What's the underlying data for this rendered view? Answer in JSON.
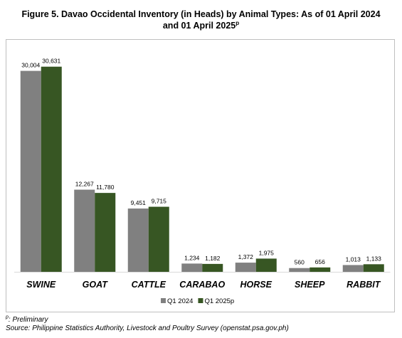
{
  "header": {
    "title_line1": "Figure 5. Davao Occidental Inventory (in Heads) by Animal Types: As of 01 April 2024",
    "title_line2": "and 01 April 2025",
    "title_sup": "p"
  },
  "footnotes": {
    "preliminary_sup": "p",
    "preliminary": ": Preliminary",
    "source": "Source: Philippine Statistics Authority, Livestock and Poultry Survey (openstat.psa.gov.ph)"
  },
  "chart_data": {
    "type": "bar",
    "title": "Figure 5. Davao Occidental Inventory (in Heads) by Animal Types: As of 01 April 2024 and 01 April 2025p",
    "categories": [
      "SWINE",
      "GOAT",
      "CATTLE",
      "CARABAO",
      "HORSE",
      "SHEEP",
      "RABBIT"
    ],
    "series": [
      {
        "name": "Q1 2024",
        "color": "#808080",
        "values": [
          30004,
          12267,
          9451,
          1234,
          1372,
          560,
          1013
        ],
        "labels": [
          "30,004",
          "12,267",
          "9,451",
          "1,234",
          "1,372",
          "560",
          "1,013"
        ]
      },
      {
        "name": "Q1 2025p",
        "color": "#375623",
        "values": [
          30631,
          11780,
          9715,
          1182,
          1975,
          656,
          1133
        ],
        "labels": [
          "30,631",
          "11,780",
          "9,715",
          "1,182",
          "1,975",
          "656",
          "1,133"
        ]
      }
    ],
    "xlabel": "",
    "ylabel": "",
    "ylim": [
      0,
      34000
    ],
    "grid": false,
    "legend_position": "bottom"
  }
}
